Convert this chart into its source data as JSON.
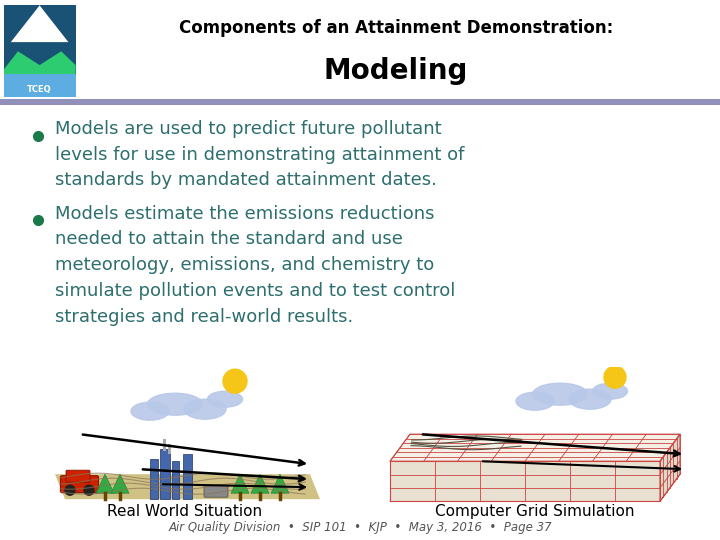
{
  "title_line1": "Components of an Attainment Demonstration:",
  "title_line2": "Modeling",
  "bullet1": "Models are used to predict future pollutant\nlevels for use in demonstrating attainment of\nstandards by mandated attainment dates.",
  "bullet2": "Models estimate the emissions reductions\nneeded to attain the standard and use\nmeteorology, emissions, and chemistry to\nsimulate pollution events and to test control\nstrategies and real-world results.",
  "caption1": "Real World Situation",
  "caption2": "Computer Grid Simulation",
  "footer": "Air Quality Division  •  SIP 101  •  KJP  •  May 3, 2016  •  Page 37",
  "bg_color": "#ffffff",
  "title_color": "#000000",
  "bullet_color": "#2d6e6e",
  "bullet_dot_color": "#1a7a4a",
  "divider_color": "#9090bb",
  "caption_color": "#000000",
  "footer_color": "#555555",
  "title1_fontsize": 12,
  "title2_fontsize": 20,
  "bullet_fontsize": 13,
  "caption_fontsize": 11,
  "footer_fontsize": 8.5
}
